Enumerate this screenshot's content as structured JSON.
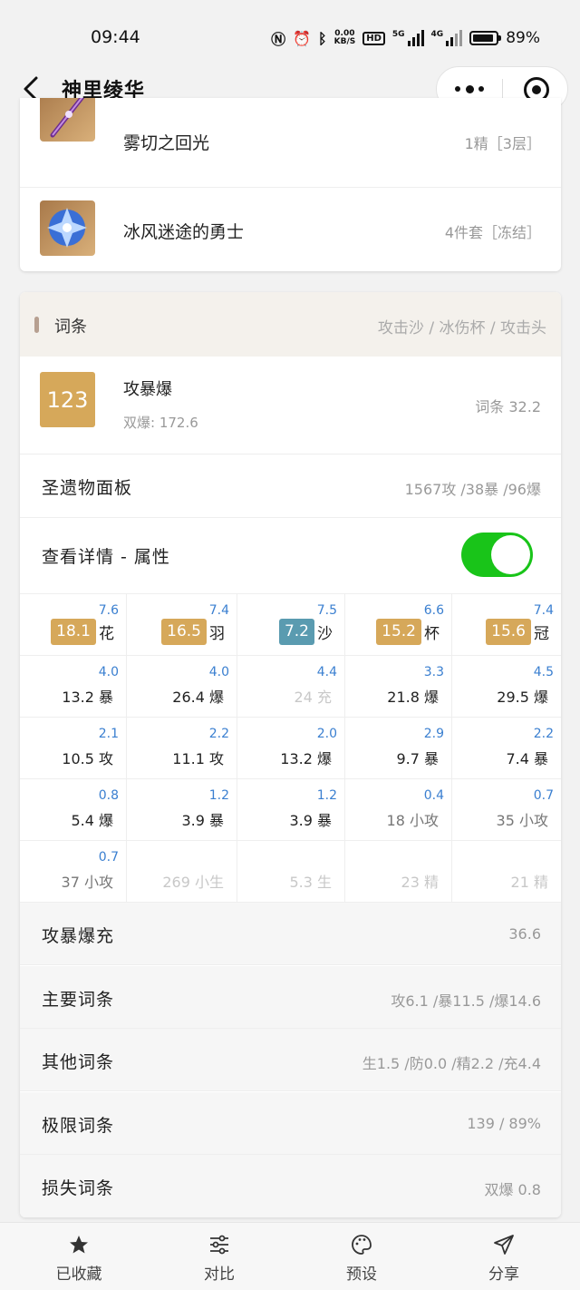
{
  "status": {
    "time": "09:44",
    "net_speed_top": "0.00",
    "net_speed_bottom": "KB/S",
    "hd": "HD",
    "sig1": "5G",
    "sig2": "4G",
    "battery": "89%"
  },
  "nav": {
    "title": "神里绫华"
  },
  "equip": [
    {
      "name": "雾切之回光",
      "value": "1精［3层］"
    },
    {
      "name": "冰风迷途的勇士",
      "value": "4件套［冻结］"
    }
  ],
  "stats_card": {
    "header_title": "词条",
    "header_right": "攻击沙 / 冰伤杯 / 攻击头",
    "score": "123",
    "score_name": "攻暴爆",
    "score_sub": "双爆: 172.6",
    "score_value": "词条 32.2",
    "panel_label": "圣遗物面板",
    "panel_value": "1567攻 /38暴 /96爆",
    "detail_label": "查看详情 - 属性",
    "toggle_on": true
  },
  "grid": {
    "header": [
      {
        "sup": "7.6",
        "val": "18.1",
        "slot": "花",
        "color": "#d6a85a"
      },
      {
        "sup": "7.4",
        "val": "16.5",
        "slot": "羽",
        "color": "#d6a85a"
      },
      {
        "sup": "7.5",
        "val": "7.2",
        "slot": "沙",
        "color": "#5a9bb0"
      },
      {
        "sup": "6.6",
        "val": "15.2",
        "slot": "杯",
        "color": "#d6a85a"
      },
      {
        "sup": "7.4",
        "val": "15.6",
        "slot": "冠",
        "color": "#d6a85a"
      }
    ],
    "rows": [
      [
        {
          "sup": "4.0",
          "text": "13.2 暴",
          "style": ""
        },
        {
          "sup": "4.0",
          "text": "26.4 爆",
          "style": ""
        },
        {
          "sup": "4.4",
          "text": "24 充",
          "style": "dim"
        },
        {
          "sup": "3.3",
          "text": "21.8 爆",
          "style": ""
        },
        {
          "sup": "4.5",
          "text": "29.5 爆",
          "style": ""
        }
      ],
      [
        {
          "sup": "2.1",
          "text": "10.5 攻",
          "style": ""
        },
        {
          "sup": "2.2",
          "text": "11.1 攻",
          "style": ""
        },
        {
          "sup": "2.0",
          "text": "13.2 爆",
          "style": ""
        },
        {
          "sup": "2.9",
          "text": "9.7 暴",
          "style": ""
        },
        {
          "sup": "2.2",
          "text": "7.4 暴",
          "style": ""
        }
      ],
      [
        {
          "sup": "0.8",
          "text": "5.4 爆",
          "style": ""
        },
        {
          "sup": "1.2",
          "text": "3.9 暴",
          "style": ""
        },
        {
          "sup": "1.2",
          "text": "3.9 暴",
          "style": ""
        },
        {
          "sup": "0.4",
          "text": "18 小攻",
          "style": "mid"
        },
        {
          "sup": "0.7",
          "text": "35 小攻",
          "style": "mid"
        }
      ],
      [
        {
          "sup": "0.7",
          "text": "37 小攻",
          "style": "mid"
        },
        {
          "sup": "",
          "text": "269 小生",
          "style": "dim"
        },
        {
          "sup": "",
          "text": "5.3 生",
          "style": "dim"
        },
        {
          "sup": "",
          "text": "23 精",
          "style": "dim"
        },
        {
          "sup": "",
          "text": "21 精",
          "style": "dim"
        }
      ]
    ]
  },
  "summary": [
    {
      "label": "攻暴爆充",
      "value": "36.6"
    },
    {
      "label": "主要词条",
      "value": "攻6.1 /暴11.5 /爆14.6"
    },
    {
      "label": "其他词条",
      "value": "生1.5 /防0.0 /精2.2 /充4.4"
    },
    {
      "label": "极限词条",
      "value": "139 / 89%"
    },
    {
      "label": "损失词条",
      "value": "双爆 0.8"
    }
  ],
  "tabbar": [
    {
      "label": "已收藏",
      "icon": "star-icon"
    },
    {
      "label": "对比",
      "icon": "sliders-icon"
    },
    {
      "label": "预设",
      "icon": "palette-icon"
    },
    {
      "label": "分享",
      "icon": "send-icon"
    }
  ]
}
